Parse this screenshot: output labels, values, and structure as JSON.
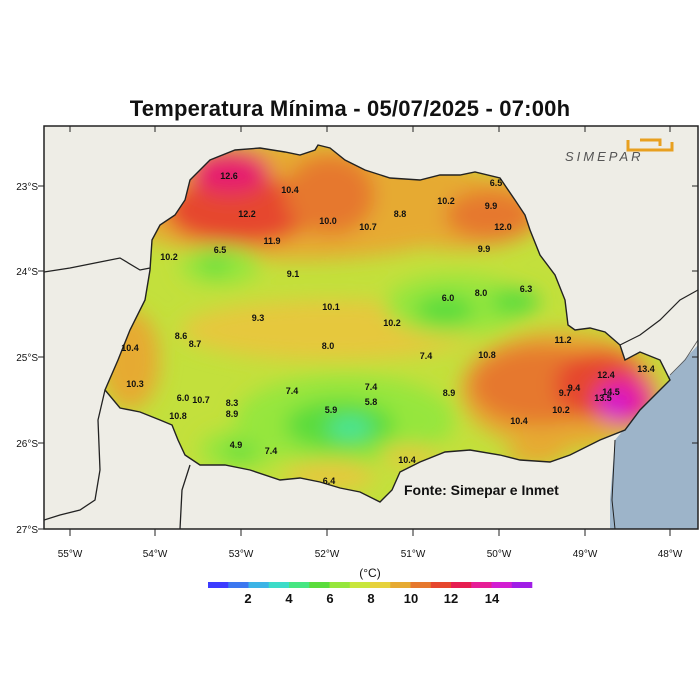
{
  "title": "Temperatura Mínima - 05/07/2025 - 07:00h",
  "logo": {
    "text": "SIMEPAR",
    "icon": "simepar-logo-icon",
    "accent": "#e8a020"
  },
  "credit": "Fonte: Simepar e Inmet",
  "lon_labels": [
    "55°W",
    "54°W",
    "53°W",
    "52°W",
    "51°W",
    "50°W",
    "49°W",
    "48°W"
  ],
  "lat_labels": [
    "23°S",
    "24°S",
    "25°S",
    "26°S",
    "27°S"
  ],
  "colorbar": {
    "unit": "(°C)",
    "ticks": [
      "2",
      "4",
      "6",
      "8",
      "10",
      "12",
      "14"
    ],
    "colors": [
      "#3c3cff",
      "#3c78f0",
      "#3cb4e6",
      "#3cdcc8",
      "#46e682",
      "#5adc3c",
      "#96e63c",
      "#c8e63c",
      "#e6d23c",
      "#e6aa32",
      "#e6782d",
      "#e6462d",
      "#e61e50",
      "#e61e96",
      "#d21ed2",
      "#a01ee6"
    ]
  },
  "stations": [
    {
      "v": "12.6"
    },
    {
      "v": "10.4"
    },
    {
      "v": "12.2"
    },
    {
      "v": "11.9"
    },
    {
      "v": "10.0"
    },
    {
      "v": "10.7"
    },
    {
      "v": "8.8"
    },
    {
      "v": "10.2"
    },
    {
      "v": "6.5"
    },
    {
      "v": "10.2"
    },
    {
      "v": "9.9"
    },
    {
      "v": "12.0"
    },
    {
      "v": "9.9"
    },
    {
      "v": "6.5"
    },
    {
      "v": "9.1"
    },
    {
      "v": "6.0"
    },
    {
      "v": "8.0"
    },
    {
      "v": "6.3"
    },
    {
      "v": "10.1"
    },
    {
      "v": "9.3"
    },
    {
      "v": "10.2"
    },
    {
      "v": "8.6"
    },
    {
      "v": "8.7"
    },
    {
      "v": "8.0"
    },
    {
      "v": "10.4"
    },
    {
      "v": "11.2"
    },
    {
      "v": "7.4"
    },
    {
      "v": "10.8"
    },
    {
      "v": "10.3"
    },
    {
      "v": "12.4"
    },
    {
      "v": "13.4"
    },
    {
      "v": "7.4"
    },
    {
      "v": "7.4"
    },
    {
      "v": "9.4"
    },
    {
      "v": "14.5"
    },
    {
      "v": "6.0"
    },
    {
      "v": "10.7"
    },
    {
      "v": "8.3"
    },
    {
      "v": "5.8"
    },
    {
      "v": "8.9"
    },
    {
      "v": "9.7"
    },
    {
      "v": "13.5"
    },
    {
      "v": "10.8"
    },
    {
      "v": "8.9"
    },
    {
      "v": "5.9"
    },
    {
      "v": "10.2"
    },
    {
      "v": "10.4"
    },
    {
      "v": "4.9"
    },
    {
      "v": "7.4"
    },
    {
      "v": "10.4"
    },
    {
      "v": "6.4"
    }
  ]
}
